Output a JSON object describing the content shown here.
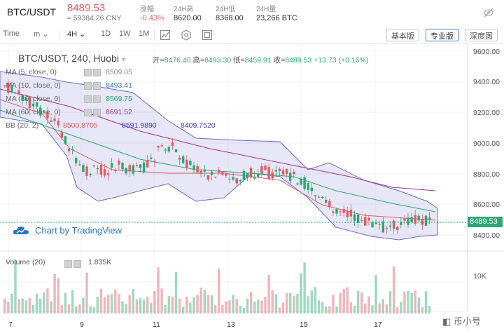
{
  "header": {
    "pair": "BTC/USDT",
    "last_price": "8489.53",
    "cny_price": "≈ 59384.26 CNY",
    "stats": [
      {
        "label": "涨幅",
        "value": "-0.43%"
      },
      {
        "label": "24H高",
        "value": "8620.00"
      },
      {
        "label": "24H低",
        "value": "8368.00"
      },
      {
        "label": "24H量",
        "value": "23,266 BTC"
      }
    ]
  },
  "toolbar": {
    "time_label": "Time",
    "minute_select": "m",
    "interval_select": "4H",
    "intervals": [
      "1D",
      "1W",
      "1M"
    ],
    "views": [
      "基本版",
      "专业版",
      "深度图"
    ],
    "active_view": "专业版"
  },
  "chart": {
    "title": "BTC/USDT, 240, Huobi",
    "ohlc": {
      "open_label": "开=",
      "open": "8476.40",
      "high_label": "高=",
      "high": "8493.30",
      "low_label": "低=",
      "low": "8459.91",
      "close_label": "收=",
      "close": "8489.53",
      "change": "+13.73 (+0.16%)"
    },
    "indicators": [
      {
        "name": "MA (5, close, 0)",
        "value": "8509.05",
        "color": "#8e8e8e"
      },
      {
        "name": "MA (10, close, 0)",
        "value": "8493.41",
        "color": "#3b78b8"
      },
      {
        "name": "MA (30, close, 0)",
        "value": "8569.75",
        "color": "#2ba872"
      },
      {
        "name": "MA (60, close, 0)",
        "value": "8691.52",
        "color": "#a0339a"
      }
    ],
    "bb": {
      "name": "BB (20, 2)",
      "values": [
        "8500.8705",
        "8591.9890",
        "8409.7520"
      ],
      "colors": [
        "#e15b64",
        "#3b3bbf",
        "#3b3bbf"
      ]
    },
    "watermark": "Chart by TradingView",
    "current_price_tag": "8489.53",
    "price_axis": [
      "9600.00",
      "9400.00",
      "9200.00",
      "9000.00",
      "8800.00",
      "8600.00",
      "8400.00"
    ],
    "volume_label": "Volume (20)",
    "volume_value": "1.835K",
    "volume_axis": [
      "10K"
    ],
    "dates": [
      "7",
      "9",
      "11",
      "13",
      "15",
      "17"
    ]
  },
  "corner_logo": "币小号"
}
